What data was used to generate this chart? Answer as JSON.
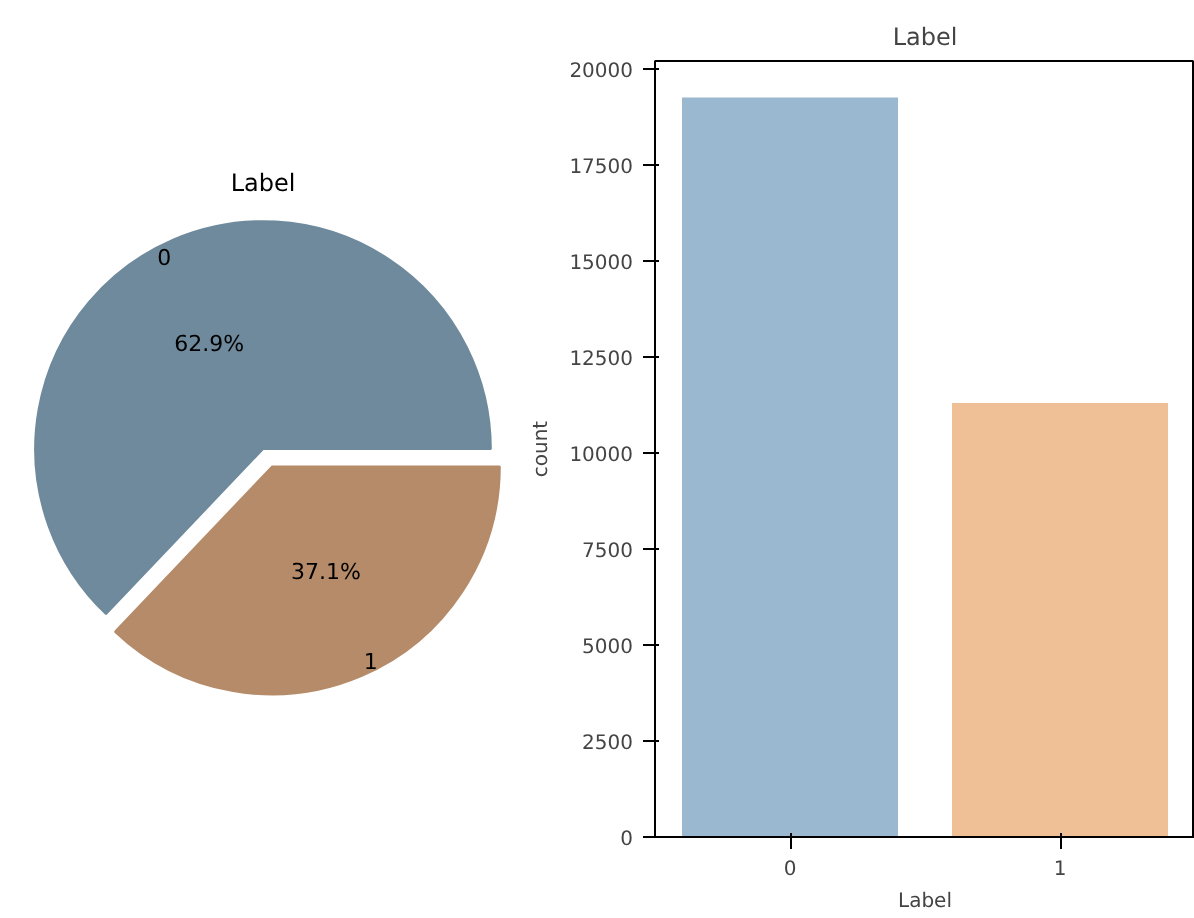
{
  "chart_data": [
    {
      "type": "pie",
      "title": "Label",
      "categories": [
        "0",
        "1"
      ],
      "values": [
        62.9,
        37.1
      ],
      "colors": [
        "#6e8a9c",
        "#b58b69"
      ],
      "value_labels": [
        "62.9%",
        "37.1%"
      ]
    },
    {
      "type": "bar",
      "title": "Label",
      "xlabel": "Label",
      "ylabel": "count",
      "categories": [
        "0",
        "1"
      ],
      "values": [
        19250,
        11300
      ],
      "colors": [
        "#9ab8cf",
        "#efc095"
      ],
      "ylim": [
        0,
        20200
      ],
      "yticks": [
        0,
        2500,
        5000,
        7500,
        10000,
        12500,
        15000,
        17500,
        20000
      ],
      "grid": false
    }
  ]
}
